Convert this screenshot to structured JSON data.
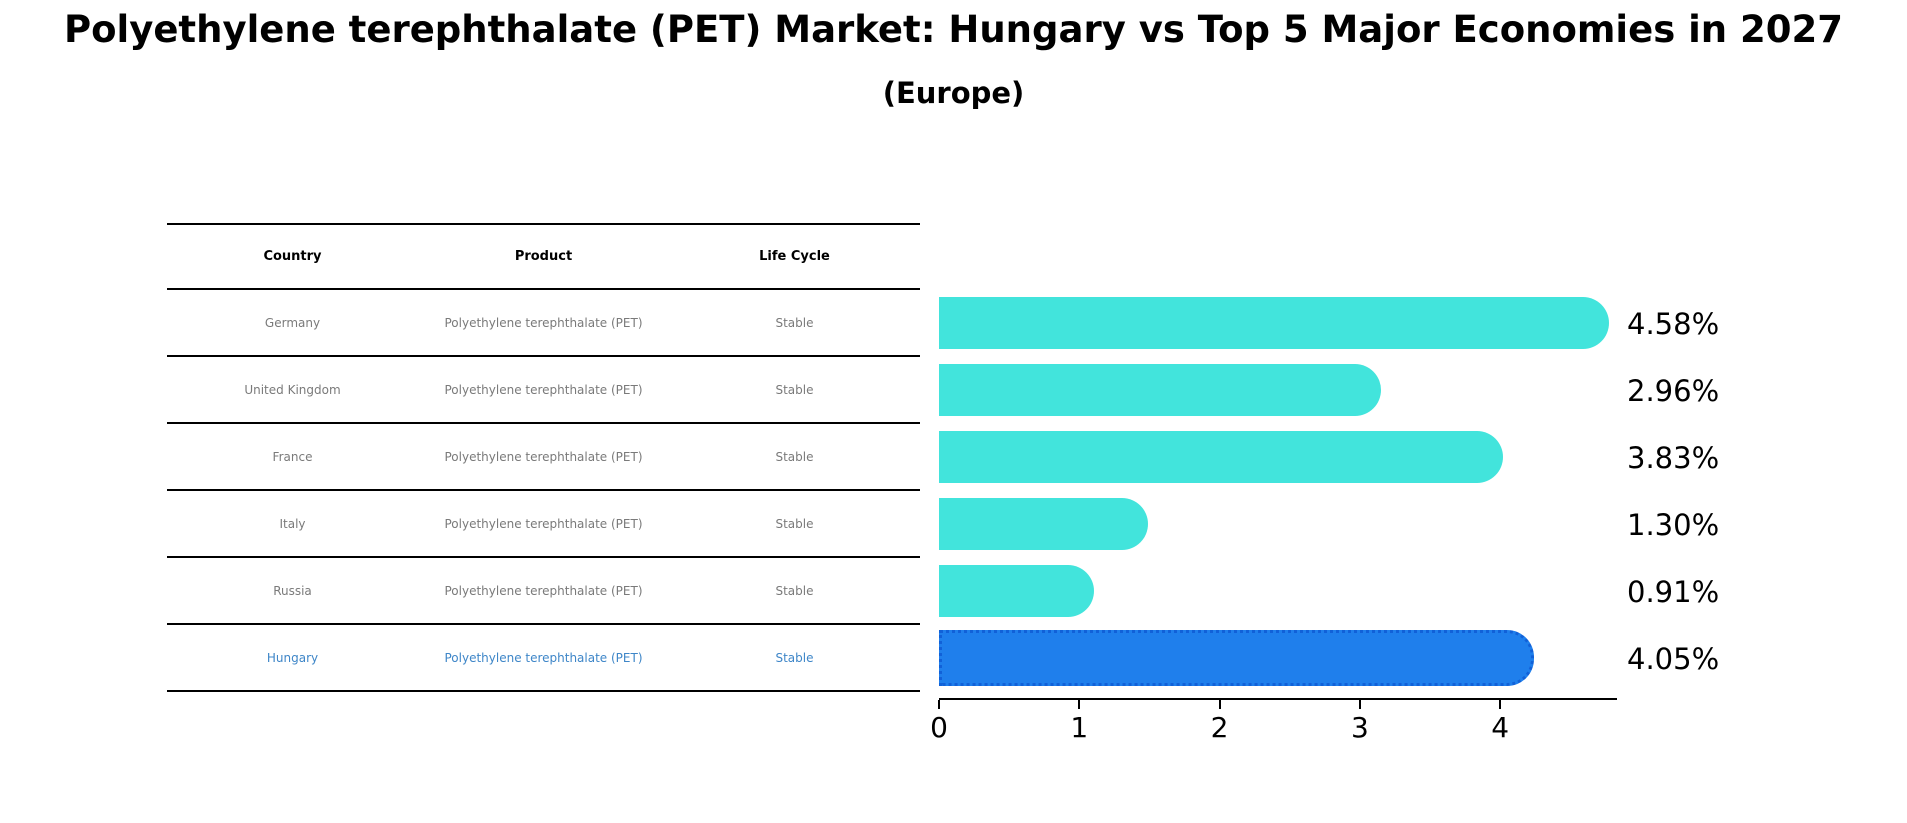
{
  "title": "Polyethylene terephthalate (PET) Market: Hungary vs Top 5 Major Economies in 2027",
  "subtitle": "(Europe)",
  "table": {
    "headers": {
      "country": "Country",
      "product": "Product",
      "life_cycle": "Life Cycle"
    },
    "rows": [
      {
        "country": "Germany",
        "product": "Polyethylene terephthalate (PET)",
        "life_cycle": "Stable",
        "highlight": false
      },
      {
        "country": "United Kingdom",
        "product": "Polyethylene terephthalate (PET)",
        "life_cycle": "Stable",
        "highlight": false
      },
      {
        "country": "France",
        "product": "Polyethylene terephthalate (PET)",
        "life_cycle": "Stable",
        "highlight": false
      },
      {
        "country": "Italy",
        "product": "Polyethylene terephthalate (PET)",
        "life_cycle": "Stable",
        "highlight": false
      },
      {
        "country": "Russia",
        "product": "Polyethylene terephthalate (PET)",
        "life_cycle": "Stable",
        "highlight": false
      },
      {
        "country": "Hungary",
        "product": "Polyethylene terephthalate (PET)",
        "life_cycle": "Stable",
        "highlight": true
      }
    ]
  },
  "chart_data": {
    "type": "bar",
    "orientation": "horizontal",
    "title": "Polyethylene terephthalate (PET) Market: Hungary vs Top 5 Major Economies in 2027",
    "subtitle": "(Europe)",
    "categories": [
      "Germany",
      "United Kingdom",
      "France",
      "Italy",
      "Russia",
      "Hungary"
    ],
    "values": [
      4.58,
      2.96,
      3.83,
      1.3,
      0.91,
      4.05
    ],
    "labels": [
      "4.58%",
      "2.96%",
      "3.83%",
      "1.30%",
      "0.91%",
      "4.05%"
    ],
    "xticks": [
      0,
      1,
      2,
      3,
      4
    ],
    "xlim": [
      0,
      4.83
    ],
    "grid": false,
    "legend": "none",
    "bar_color": "#42e4dc",
    "highlight_color": "#1f7fec",
    "highlight_border_color": "#1161d8",
    "highlight_index": 5,
    "highlight_text_color": "#3e86c8",
    "axis_color": "#000000",
    "table_text_color": "#7a7a7a"
  }
}
